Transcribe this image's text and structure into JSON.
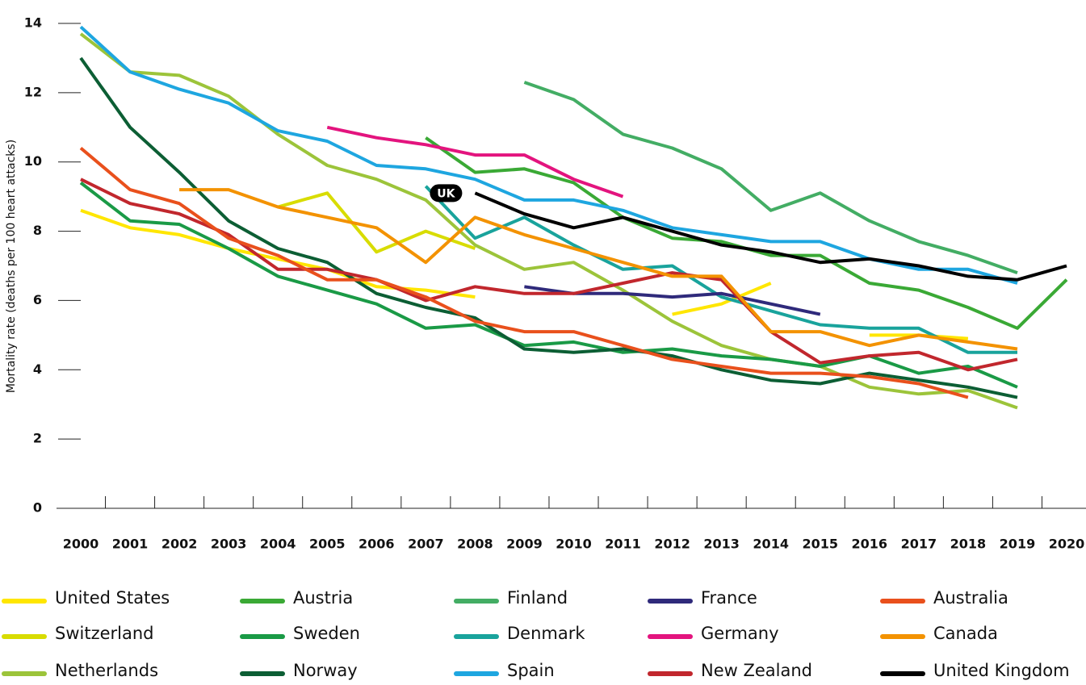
{
  "chart_data": {
    "type": "line",
    "y_label": "Mortality rate (deaths per 100 heart attacks)",
    "categories": [
      "2000",
      "2001",
      "2002",
      "2003",
      "2004",
      "2005",
      "2006",
      "2007",
      "2008",
      "2009",
      "2010",
      "2011",
      "2012",
      "2013",
      "2014",
      "2015",
      "2016",
      "2017",
      "2018",
      "2019",
      "2020"
    ],
    "ylim": [
      0,
      14
    ],
    "yticks": [
      0,
      2,
      4,
      6,
      8,
      10,
      12,
      14
    ],
    "annotation": {
      "text": "UK",
      "series": 14,
      "index": 8
    },
    "series": [
      {
        "name": "United States",
        "color": "#ffe600",
        "values": [
          8.6,
          8.1,
          7.9,
          7.5,
          7.2,
          6.9,
          6.4,
          6.3,
          6.1,
          null,
          null,
          null,
          5.6,
          5.9,
          6.5,
          null,
          5.0,
          5.0,
          4.9,
          null,
          null
        ]
      },
      {
        "name": "Switzerland",
        "color": "#d8dc00",
        "values": [
          null,
          null,
          null,
          null,
          8.7,
          9.1,
          7.4,
          8.0,
          7.5,
          null,
          null,
          null,
          null,
          null,
          null,
          null,
          null,
          null,
          null,
          null,
          null
        ]
      },
      {
        "name": "Netherlands",
        "color": "#9cc43a",
        "values": [
          13.7,
          12.6,
          12.5,
          11.9,
          10.8,
          9.9,
          9.5,
          8.9,
          7.6,
          6.9,
          7.1,
          6.3,
          5.4,
          4.7,
          4.3,
          4.1,
          3.5,
          3.3,
          3.4,
          2.9,
          null
        ]
      },
      {
        "name": "Austria",
        "color": "#3aa935",
        "values": [
          null,
          null,
          null,
          null,
          null,
          null,
          null,
          10.7,
          9.7,
          9.8,
          9.4,
          8.4,
          7.8,
          7.7,
          7.3,
          7.3,
          6.5,
          6.3,
          5.8,
          5.2,
          6.6
        ]
      },
      {
        "name": "Sweden",
        "color": "#1a9a46",
        "values": [
          9.4,
          8.3,
          8.2,
          7.5,
          6.7,
          6.3,
          5.9,
          5.2,
          5.3,
          4.7,
          4.8,
          4.5,
          4.6,
          4.4,
          4.3,
          4.1,
          4.4,
          3.9,
          4.1,
          3.5,
          null
        ]
      },
      {
        "name": "Norway",
        "color": "#0c5e34",
        "values": [
          13.0,
          11.0,
          9.7,
          8.3,
          7.5,
          7.1,
          6.2,
          5.8,
          5.5,
          4.6,
          4.5,
          4.6,
          4.4,
          4.0,
          3.7,
          3.6,
          3.9,
          3.7,
          3.5,
          3.2,
          null
        ]
      },
      {
        "name": "Finland",
        "color": "#43ad64",
        "values": [
          null,
          null,
          null,
          null,
          null,
          null,
          null,
          null,
          null,
          12.3,
          11.8,
          10.8,
          10.4,
          9.8,
          8.6,
          9.1,
          8.3,
          7.7,
          7.3,
          6.8,
          null
        ]
      },
      {
        "name": "Denmark",
        "color": "#19a39c",
        "values": [
          null,
          null,
          null,
          null,
          null,
          null,
          null,
          9.3,
          7.8,
          8.4,
          7.6,
          6.9,
          7.0,
          6.1,
          5.7,
          5.3,
          5.2,
          5.2,
          4.5,
          4.5,
          null
        ]
      },
      {
        "name": "Spain",
        "color": "#1ea6e0",
        "values": [
          13.9,
          12.6,
          12.1,
          11.7,
          10.9,
          10.6,
          9.9,
          9.8,
          9.5,
          8.9,
          8.9,
          8.6,
          8.1,
          7.9,
          7.7,
          7.7,
          7.2,
          6.9,
          6.9,
          6.5,
          null
        ]
      },
      {
        "name": "France",
        "color": "#2f2a7b",
        "values": [
          null,
          null,
          null,
          null,
          null,
          null,
          null,
          null,
          null,
          6.4,
          6.2,
          6.2,
          6.1,
          6.2,
          5.9,
          5.6,
          null,
          null,
          null,
          null,
          null
        ]
      },
      {
        "name": "Germany",
        "color": "#e3147e",
        "values": [
          null,
          null,
          null,
          null,
          null,
          11.0,
          10.7,
          10.5,
          10.2,
          10.2,
          9.5,
          9.0,
          null,
          null,
          null,
          null,
          null,
          null,
          null,
          null,
          null
        ]
      },
      {
        "name": "New Zealand",
        "color": "#c1272d",
        "values": [
          9.5,
          8.8,
          8.5,
          7.9,
          6.9,
          6.9,
          6.6,
          6.0,
          6.4,
          6.2,
          6.2,
          6.5,
          6.8,
          6.6,
          5.1,
          4.2,
          4.4,
          4.5,
          4.0,
          4.3,
          null
        ]
      },
      {
        "name": "Australia",
        "color": "#e9501c",
        "values": [
          10.4,
          9.2,
          8.8,
          7.8,
          7.3,
          6.6,
          6.6,
          6.1,
          5.4,
          5.1,
          5.1,
          4.7,
          4.3,
          4.1,
          3.9,
          3.9,
          3.8,
          3.6,
          3.2,
          null,
          null
        ]
      },
      {
        "name": "Canada",
        "color": "#f39200",
        "values": [
          null,
          null,
          9.2,
          9.2,
          8.7,
          8.4,
          8.1,
          7.1,
          8.4,
          7.9,
          7.5,
          7.1,
          6.7,
          6.7,
          5.1,
          5.1,
          4.7,
          5.0,
          4.8,
          4.6,
          null
        ]
      },
      {
        "name": "United Kingdom",
        "color": "#000000",
        "values": [
          null,
          null,
          null,
          null,
          null,
          null,
          null,
          null,
          9.1,
          8.5,
          8.1,
          8.4,
          8.0,
          7.6,
          7.4,
          7.1,
          7.2,
          7.0,
          6.7,
          6.6,
          7.0
        ]
      }
    ]
  }
}
